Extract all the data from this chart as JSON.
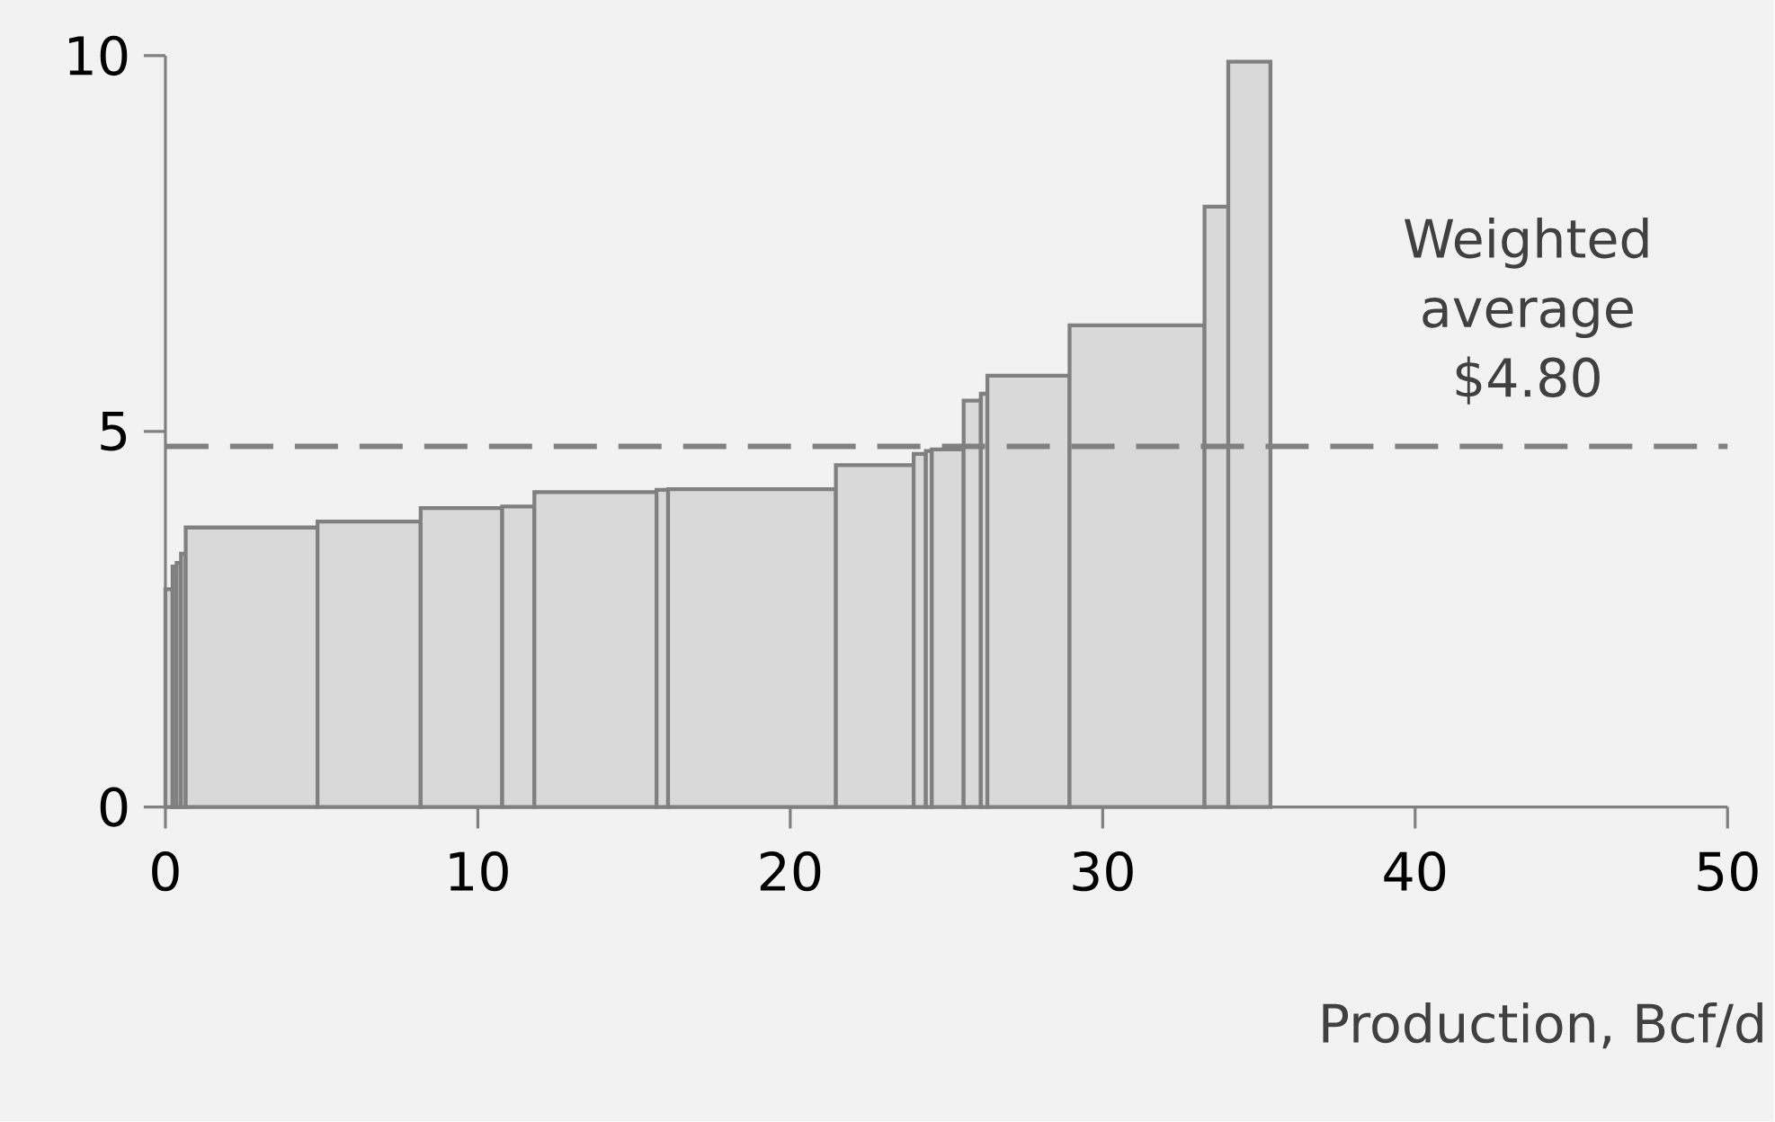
{
  "chart_data": {
    "type": "histogram",
    "bins": [
      0,
      0.23,
      0.36,
      0.5,
      0.65,
      4.87,
      8.17,
      10.78,
      11.81,
      15.72,
      16.09,
      21.46,
      23.95,
      24.34,
      24.53,
      25.55,
      26.1,
      26.31,
      28.94,
      33.26,
      34.02,
      35.37
    ],
    "values": [
      2.9,
      3.2,
      3.25,
      3.37,
      3.72,
      3.8,
      3.98,
      4.0,
      4.19,
      4.22,
      4.23,
      4.55,
      4.7,
      4.74,
      4.76,
      5.41,
      5.5,
      5.74,
      6.41,
      7.99,
      9.92
    ],
    "color": "#d9d9d9",
    "xlabel": "Production, Bcf/d",
    "xlim": [
      0,
      50
    ],
    "xticks": [
      0,
      10,
      20,
      30,
      40,
      50
    ],
    "ylim": [
      0,
      10
    ],
    "yticks": [
      0,
      5,
      10
    ],
    "ref_lines": [
      {
        "axis": "y",
        "value": 4.8,
        "label": "Weighted average $4.80",
        "color": "#808080",
        "line_style": "dashed"
      }
    ],
    "grid": false
  }
}
